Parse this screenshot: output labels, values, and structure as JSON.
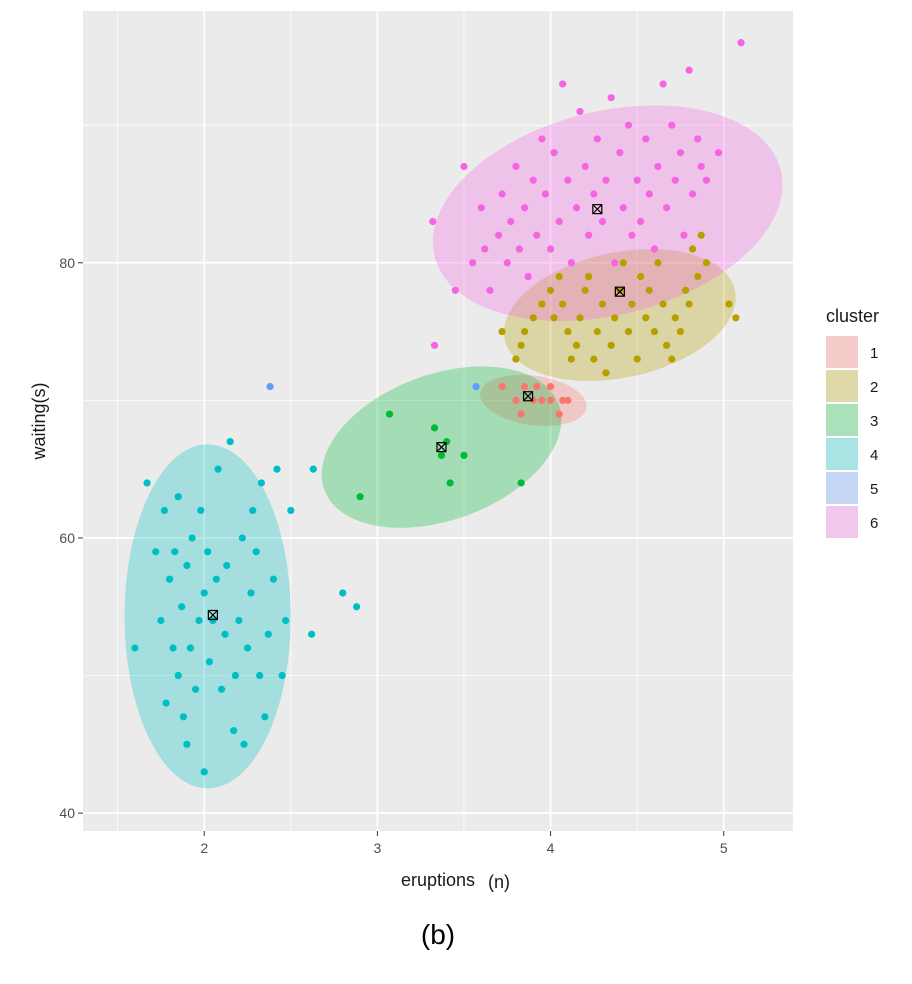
{
  "chart_data": {
    "type": "scatter",
    "xlabel": "eruptions",
    "xlabel_suffix": "(n)",
    "ylabel": "waiting(s)",
    "caption": "(b)",
    "x_range": [
      1.3,
      5.4
    ],
    "y_range": [
      38.7,
      98.3
    ],
    "x_ticks": [
      2,
      3,
      4,
      5
    ],
    "y_ticks": [
      40,
      60,
      80
    ],
    "grid": true,
    "legend": {
      "title": "cluster",
      "position": "right"
    },
    "series": [
      {
        "name": "1",
        "color": "#F8766D",
        "fill": "#F8766D",
        "ellipse": {
          "cx": 3.9,
          "cy": 70.0,
          "rx": 0.31,
          "ry": 1.8,
          "angle_deg": 8
        },
        "center": [
          3.87,
          70.3
        ],
        "points": [
          [
            3.72,
            71
          ],
          [
            3.8,
            70
          ],
          [
            3.83,
            69
          ],
          [
            3.85,
            71
          ],
          [
            3.9,
            70
          ],
          [
            3.92,
            71
          ],
          [
            3.95,
            70
          ],
          [
            4.0,
            71
          ],
          [
            4.0,
            70
          ],
          [
            4.05,
            69
          ],
          [
            4.07,
            70
          ],
          [
            4.1,
            70
          ]
        ]
      },
      {
        "name": "2",
        "color": "#B79F00",
        "fill": "#B79F00",
        "ellipse": {
          "cx": 4.4,
          "cy": 76.2,
          "rx": 0.68,
          "ry": 4.55,
          "angle_deg": -12
        },
        "center": [
          4.4,
          77.9
        ],
        "points": [
          [
            3.72,
            75
          ],
          [
            3.8,
            73
          ],
          [
            3.83,
            74
          ],
          [
            3.85,
            75
          ],
          [
            3.9,
            76
          ],
          [
            3.95,
            77
          ],
          [
            4.0,
            78
          ],
          [
            4.02,
            76
          ],
          [
            4.05,
            79
          ],
          [
            4.07,
            77
          ],
          [
            4.1,
            75
          ],
          [
            4.12,
            73
          ],
          [
            4.15,
            74
          ],
          [
            4.17,
            76
          ],
          [
            4.2,
            78
          ],
          [
            4.22,
            79
          ],
          [
            4.25,
            73
          ],
          [
            4.27,
            75
          ],
          [
            4.3,
            77
          ],
          [
            4.32,
            72
          ],
          [
            4.35,
            74
          ],
          [
            4.37,
            76
          ],
          [
            4.4,
            78
          ],
          [
            4.42,
            80
          ],
          [
            4.45,
            75
          ],
          [
            4.47,
            77
          ],
          [
            4.5,
            73
          ],
          [
            4.52,
            79
          ],
          [
            4.55,
            76
          ],
          [
            4.57,
            78
          ],
          [
            4.6,
            75
          ],
          [
            4.62,
            80
          ],
          [
            4.65,
            77
          ],
          [
            4.67,
            74
          ],
          [
            4.7,
            73
          ],
          [
            4.72,
            76
          ],
          [
            4.75,
            75
          ],
          [
            4.78,
            78
          ],
          [
            4.8,
            77
          ],
          [
            4.82,
            81
          ],
          [
            4.85,
            79
          ],
          [
            4.87,
            82
          ],
          [
            4.9,
            80
          ],
          [
            5.03,
            77
          ],
          [
            5.07,
            76
          ]
        ]
      },
      {
        "name": "3",
        "color": "#00BA38",
        "fill": "#00BA38",
        "ellipse": {
          "cx": 3.37,
          "cy": 66.6,
          "rx": 0.72,
          "ry": 5.3,
          "angle_deg": -20
        },
        "center": [
          3.37,
          66.6
        ],
        "points": [
          [
            3.07,
            69
          ],
          [
            2.9,
            63
          ],
          [
            3.33,
            68
          ],
          [
            3.37,
            66
          ],
          [
            3.4,
            67
          ],
          [
            3.42,
            64
          ],
          [
            3.5,
            66
          ],
          [
            3.83,
            64
          ]
        ]
      },
      {
        "name": "4",
        "color": "#00BFC4",
        "fill": "#00BFC4",
        "ellipse": {
          "cx": 2.02,
          "cy": 54.3,
          "rx": 0.48,
          "ry": 12.5,
          "angle_deg": 0
        },
        "center": [
          2.05,
          54.4
        ],
        "points": [
          [
            1.6,
            52
          ],
          [
            1.67,
            64
          ],
          [
            1.72,
            59
          ],
          [
            1.75,
            54
          ],
          [
            1.77,
            62
          ],
          [
            1.78,
            48
          ],
          [
            1.8,
            57
          ],
          [
            1.82,
            52
          ],
          [
            1.83,
            59
          ],
          [
            1.85,
            63
          ],
          [
            1.85,
            50
          ],
          [
            1.87,
            55
          ],
          [
            1.88,
            47
          ],
          [
            1.9,
            58
          ],
          [
            1.9,
            45
          ],
          [
            1.92,
            52
          ],
          [
            1.93,
            60
          ],
          [
            1.95,
            49
          ],
          [
            1.97,
            54
          ],
          [
            1.98,
            62
          ],
          [
            2.0,
            56
          ],
          [
            2.0,
            43
          ],
          [
            2.02,
            59
          ],
          [
            2.03,
            51
          ],
          [
            2.05,
            54
          ],
          [
            2.07,
            57
          ],
          [
            2.08,
            65
          ],
          [
            2.1,
            49
          ],
          [
            2.12,
            53
          ],
          [
            2.13,
            58
          ],
          [
            2.15,
            67
          ],
          [
            2.17,
            46
          ],
          [
            2.18,
            50
          ],
          [
            2.2,
            54
          ],
          [
            2.22,
            60
          ],
          [
            2.23,
            45
          ],
          [
            2.25,
            52
          ],
          [
            2.27,
            56
          ],
          [
            2.28,
            62
          ],
          [
            2.3,
            59
          ],
          [
            2.32,
            50
          ],
          [
            2.33,
            64
          ],
          [
            2.35,
            47
          ],
          [
            2.37,
            53
          ],
          [
            2.4,
            57
          ],
          [
            2.42,
            65
          ],
          [
            2.45,
            50
          ],
          [
            2.47,
            54
          ],
          [
            2.5,
            62
          ],
          [
            2.62,
            53
          ],
          [
            2.63,
            65
          ],
          [
            2.8,
            56
          ],
          [
            2.88,
            55
          ]
        ]
      },
      {
        "name": "5",
        "color": "#619CFF",
        "fill": "#619CFF",
        "ellipse": null,
        "center": null,
        "points": [
          [
            2.38,
            71
          ],
          [
            3.57,
            71
          ]
        ]
      },
      {
        "name": "6",
        "color": "#F564E3",
        "fill": "#F564E3",
        "ellipse": {
          "cx": 4.33,
          "cy": 83.6,
          "rx": 1.03,
          "ry": 7.4,
          "angle_deg": -14
        },
        "center": [
          4.27,
          83.9
        ],
        "points": [
          [
            3.32,
            83
          ],
          [
            3.33,
            74
          ],
          [
            3.45,
            78
          ],
          [
            3.5,
            87
          ],
          [
            3.55,
            80
          ],
          [
            3.6,
            84
          ],
          [
            3.62,
            81
          ],
          [
            3.65,
            78
          ],
          [
            3.7,
            82
          ],
          [
            3.72,
            85
          ],
          [
            3.75,
            80
          ],
          [
            3.77,
            83
          ],
          [
            3.8,
            87
          ],
          [
            3.82,
            81
          ],
          [
            3.85,
            84
          ],
          [
            3.87,
            79
          ],
          [
            3.9,
            86
          ],
          [
            3.92,
            82
          ],
          [
            3.95,
            89
          ],
          [
            3.97,
            85
          ],
          [
            4.0,
            81
          ],
          [
            4.02,
            88
          ],
          [
            4.05,
            83
          ],
          [
            4.07,
            93
          ],
          [
            4.1,
            86
          ],
          [
            4.12,
            80
          ],
          [
            4.15,
            84
          ],
          [
            4.17,
            91
          ],
          [
            4.2,
            87
          ],
          [
            4.22,
            82
          ],
          [
            4.25,
            85
          ],
          [
            4.27,
            89
          ],
          [
            4.3,
            83
          ],
          [
            4.32,
            86
          ],
          [
            4.35,
            92
          ],
          [
            4.37,
            80
          ],
          [
            4.4,
            88
          ],
          [
            4.42,
            84
          ],
          [
            4.45,
            90
          ],
          [
            4.47,
            82
          ],
          [
            4.5,
            86
          ],
          [
            4.52,
            83
          ],
          [
            4.55,
            89
          ],
          [
            4.57,
            85
          ],
          [
            4.6,
            81
          ],
          [
            4.62,
            87
          ],
          [
            4.65,
            93
          ],
          [
            4.67,
            84
          ],
          [
            4.7,
            90
          ],
          [
            4.72,
            86
          ],
          [
            4.75,
            88
          ],
          [
            4.77,
            82
          ],
          [
            4.8,
            94
          ],
          [
            4.82,
            85
          ],
          [
            4.85,
            89
          ],
          [
            4.87,
            87
          ],
          [
            4.9,
            86
          ],
          [
            4.97,
            88
          ],
          [
            5.1,
            96
          ]
        ]
      }
    ]
  }
}
